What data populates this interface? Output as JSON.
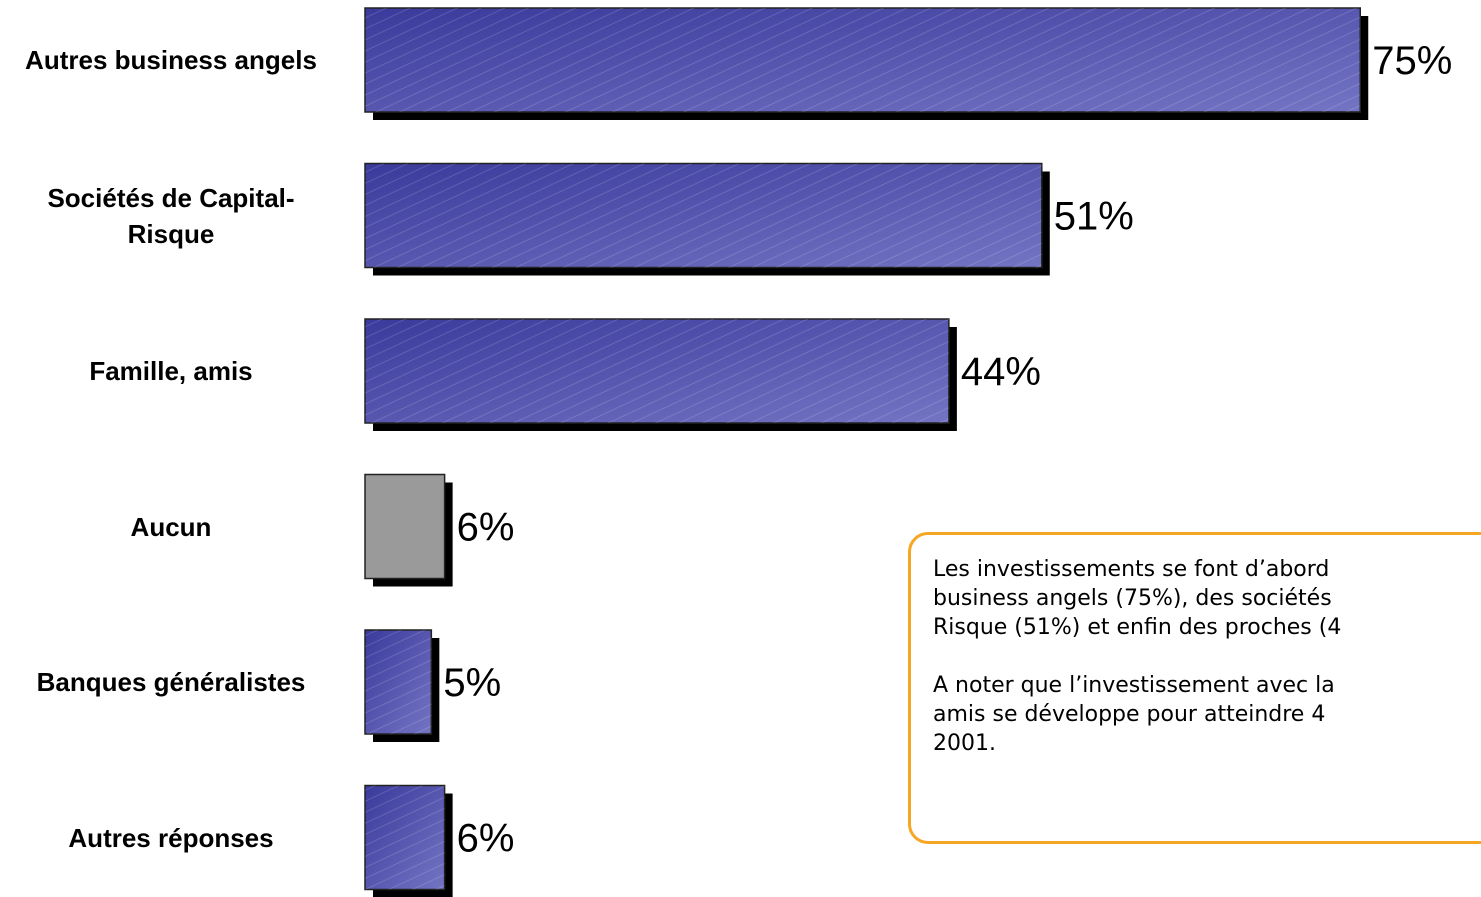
{
  "chart_data": {
    "type": "bar",
    "orientation": "horizontal",
    "categories": [
      "Autres business angels",
      "Sociétés de Capital-Risque",
      "Famille, amis",
      "Aucun",
      "Banques généralistes",
      "Autres réponses"
    ],
    "values": [
      75,
      51,
      44,
      6,
      5,
      6
    ],
    "value_labels": [
      "75%",
      "51%",
      "44%",
      "6%",
      "5%",
      "6%"
    ],
    "colors": [
      "#4848a8",
      "#4848a8",
      "#4848a8",
      "#9a9a9a",
      "#4848a8",
      "#4848a8"
    ]
  },
  "annotation": {
    "paragraphs": [
      [
        "Les investissements se font d’abord",
        "business angels (75%), des sociétés",
        "Risque (51%) et enfin des proches (4"
      ],
      [
        "A noter que l’investissement avec la",
        "amis se développe pour atteindre 4",
        "2001."
      ]
    ]
  }
}
